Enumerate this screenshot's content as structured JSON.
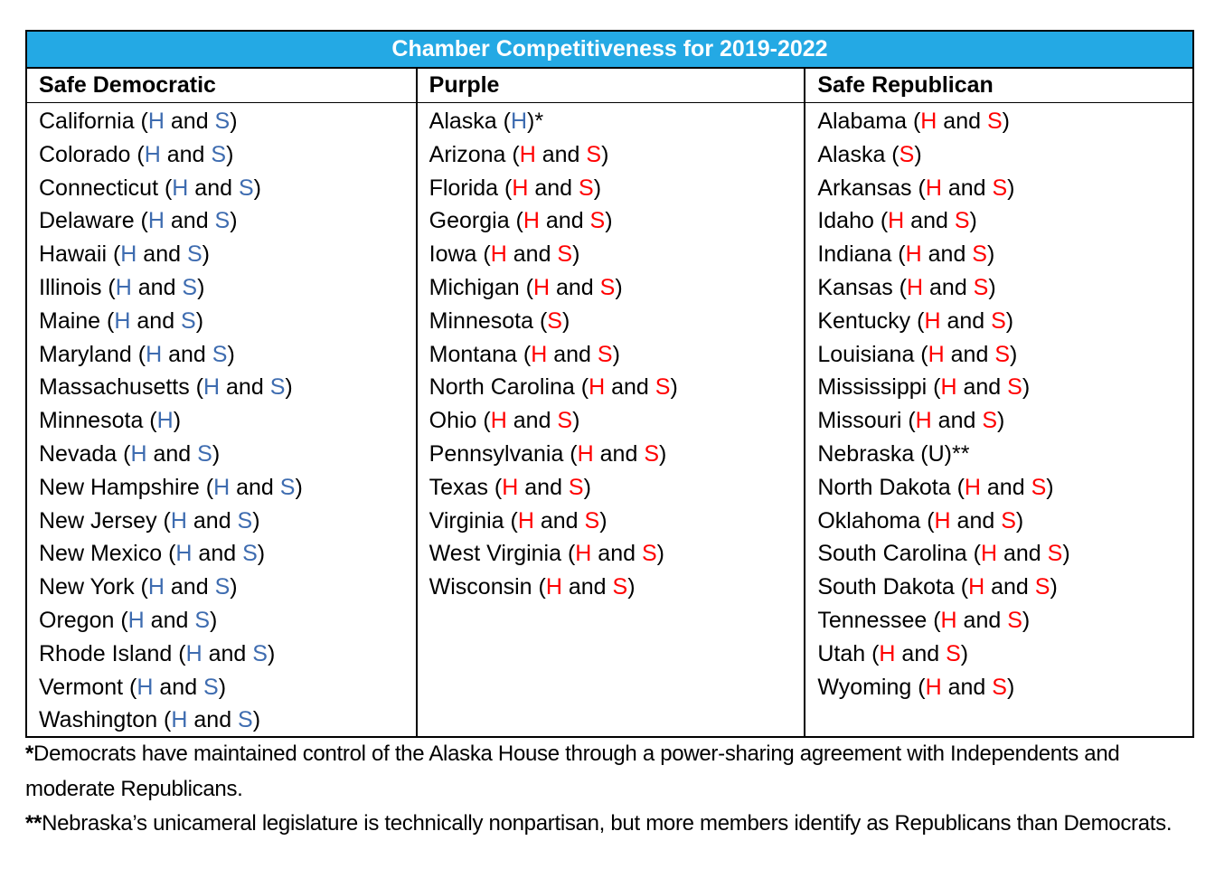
{
  "colors": {
    "header_bg": "#24A9E4",
    "header_text": "#FFFFFF",
    "dem": "#3E6CB0",
    "rep": "#FF0000",
    "plain": "#000000",
    "border": "#000000",
    "body_text": "#000000"
  },
  "table": {
    "title": "Chamber Competitiveness for 2019-2022",
    "joiner": "and",
    "columns": [
      {
        "header": "Safe Democratic",
        "entries": [
          {
            "state": "California",
            "chambers": [
              {
                "label": "H",
                "party": "dem"
              },
              {
                "label": "S",
                "party": "dem"
              }
            ],
            "suffix": ""
          },
          {
            "state": "Colorado",
            "chambers": [
              {
                "label": "H",
                "party": "dem"
              },
              {
                "label": "S",
                "party": "dem"
              }
            ],
            "suffix": ""
          },
          {
            "state": "Connecticut",
            "chambers": [
              {
                "label": "H",
                "party": "dem"
              },
              {
                "label": "S",
                "party": "dem"
              }
            ],
            "suffix": ""
          },
          {
            "state": "Delaware",
            "chambers": [
              {
                "label": "H",
                "party": "dem"
              },
              {
                "label": "S",
                "party": "dem"
              }
            ],
            "suffix": ""
          },
          {
            "state": "Hawaii",
            "chambers": [
              {
                "label": "H",
                "party": "dem"
              },
              {
                "label": "S",
                "party": "dem"
              }
            ],
            "suffix": ""
          },
          {
            "state": "Illinois",
            "chambers": [
              {
                "label": "H",
                "party": "dem"
              },
              {
                "label": "S",
                "party": "dem"
              }
            ],
            "suffix": ""
          },
          {
            "state": "Maine",
            "chambers": [
              {
                "label": "H",
                "party": "dem"
              },
              {
                "label": "S",
                "party": "dem"
              }
            ],
            "suffix": ""
          },
          {
            "state": "Maryland",
            "chambers": [
              {
                "label": "H",
                "party": "dem"
              },
              {
                "label": "S",
                "party": "dem"
              }
            ],
            "suffix": ""
          },
          {
            "state": "Massachusetts",
            "chambers": [
              {
                "label": "H",
                "party": "dem"
              },
              {
                "label": "S",
                "party": "dem"
              }
            ],
            "suffix": ""
          },
          {
            "state": "Minnesota",
            "chambers": [
              {
                "label": "H",
                "party": "dem"
              }
            ],
            "suffix": ""
          },
          {
            "state": "Nevada",
            "chambers": [
              {
                "label": "H",
                "party": "dem"
              },
              {
                "label": "S",
                "party": "dem"
              }
            ],
            "suffix": ""
          },
          {
            "state": "New Hampshire",
            "chambers": [
              {
                "label": "H",
                "party": "dem"
              },
              {
                "label": "S",
                "party": "dem"
              }
            ],
            "suffix": ""
          },
          {
            "state": "New Jersey",
            "chambers": [
              {
                "label": "H",
                "party": "dem"
              },
              {
                "label": "S",
                "party": "dem"
              }
            ],
            "suffix": ""
          },
          {
            "state": "New Mexico",
            "chambers": [
              {
                "label": "H",
                "party": "dem"
              },
              {
                "label": "S",
                "party": "dem"
              }
            ],
            "suffix": ""
          },
          {
            "state": "New York",
            "chambers": [
              {
                "label": "H",
                "party": "dem"
              },
              {
                "label": "S",
                "party": "dem"
              }
            ],
            "suffix": ""
          },
          {
            "state": "Oregon",
            "chambers": [
              {
                "label": "H",
                "party": "dem"
              },
              {
                "label": "S",
                "party": "dem"
              }
            ],
            "suffix": ""
          },
          {
            "state": "Rhode Island",
            "chambers": [
              {
                "label": "H",
                "party": "dem"
              },
              {
                "label": "S",
                "party": "dem"
              }
            ],
            "suffix": ""
          },
          {
            "state": "Vermont",
            "chambers": [
              {
                "label": "H",
                "party": "dem"
              },
              {
                "label": "S",
                "party": "dem"
              }
            ],
            "suffix": ""
          },
          {
            "state": "Washington",
            "chambers": [
              {
                "label": "H",
                "party": "dem"
              },
              {
                "label": "S",
                "party": "dem"
              }
            ],
            "suffix": ""
          }
        ]
      },
      {
        "header": "Purple",
        "entries": [
          {
            "state": "Alaska",
            "chambers": [
              {
                "label": "H",
                "party": "dem"
              }
            ],
            "suffix": "*"
          },
          {
            "state": "Arizona",
            "chambers": [
              {
                "label": "H",
                "party": "rep"
              },
              {
                "label": "S",
                "party": "rep"
              }
            ],
            "suffix": ""
          },
          {
            "state": "Florida",
            "chambers": [
              {
                "label": "H",
                "party": "rep"
              },
              {
                "label": "S",
                "party": "rep"
              }
            ],
            "suffix": ""
          },
          {
            "state": "Georgia",
            "chambers": [
              {
                "label": "H",
                "party": "rep"
              },
              {
                "label": "S",
                "party": "rep"
              }
            ],
            "suffix": ""
          },
          {
            "state": "Iowa",
            "chambers": [
              {
                "label": "H",
                "party": "rep"
              },
              {
                "label": "S",
                "party": "rep"
              }
            ],
            "suffix": ""
          },
          {
            "state": "Michigan",
            "chambers": [
              {
                "label": "H",
                "party": "rep"
              },
              {
                "label": "S",
                "party": "rep"
              }
            ],
            "suffix": ""
          },
          {
            "state": "Minnesota",
            "chambers": [
              {
                "label": "S",
                "party": "rep"
              }
            ],
            "suffix": ""
          },
          {
            "state": "Montana",
            "chambers": [
              {
                "label": "H",
                "party": "rep"
              },
              {
                "label": "S",
                "party": "rep"
              }
            ],
            "suffix": ""
          },
          {
            "state": "North Carolina",
            "chambers": [
              {
                "label": "H",
                "party": "rep"
              },
              {
                "label": "S",
                "party": "rep"
              }
            ],
            "suffix": ""
          },
          {
            "state": "Ohio",
            "chambers": [
              {
                "label": "H",
                "party": "rep"
              },
              {
                "label": "S",
                "party": "rep"
              }
            ],
            "suffix": ""
          },
          {
            "state": "Pennsylvania",
            "chambers": [
              {
                "label": "H",
                "party": "rep"
              },
              {
                "label": "S",
                "party": "rep"
              }
            ],
            "suffix": ""
          },
          {
            "state": "Texas",
            "chambers": [
              {
                "label": "H",
                "party": "rep"
              },
              {
                "label": "S",
                "party": "rep"
              }
            ],
            "suffix": ""
          },
          {
            "state": "Virginia",
            "chambers": [
              {
                "label": "H",
                "party": "rep"
              },
              {
                "label": "S",
                "party": "rep"
              }
            ],
            "suffix": ""
          },
          {
            "state": "West Virginia",
            "chambers": [
              {
                "label": "H",
                "party": "rep"
              },
              {
                "label": "S",
                "party": "rep"
              }
            ],
            "suffix": ""
          },
          {
            "state": "Wisconsin",
            "chambers": [
              {
                "label": "H",
                "party": "rep"
              },
              {
                "label": "S",
                "party": "rep"
              }
            ],
            "suffix": ""
          }
        ]
      },
      {
        "header": "Safe Republican",
        "entries": [
          {
            "state": "Alabama",
            "chambers": [
              {
                "label": "H",
                "party": "rep"
              },
              {
                "label": "S",
                "party": "rep"
              }
            ],
            "suffix": ""
          },
          {
            "state": "Alaska",
            "chambers": [
              {
                "label": "S",
                "party": "rep"
              }
            ],
            "suffix": ""
          },
          {
            "state": "Arkansas",
            "chambers": [
              {
                "label": "H",
                "party": "rep"
              },
              {
                "label": "S",
                "party": "rep"
              }
            ],
            "suffix": ""
          },
          {
            "state": "Idaho",
            "chambers": [
              {
                "label": "H",
                "party": "rep"
              },
              {
                "label": "S",
                "party": "rep"
              }
            ],
            "suffix": ""
          },
          {
            "state": "Indiana",
            "chambers": [
              {
                "label": "H",
                "party": "rep"
              },
              {
                "label": "S",
                "party": "rep"
              }
            ],
            "suffix": ""
          },
          {
            "state": "Kansas",
            "chambers": [
              {
                "label": "H",
                "party": "rep"
              },
              {
                "label": "S",
                "party": "rep"
              }
            ],
            "suffix": ""
          },
          {
            "state": "Kentucky",
            "chambers": [
              {
                "label": "H",
                "party": "rep"
              },
              {
                "label": "S",
                "party": "rep"
              }
            ],
            "suffix": ""
          },
          {
            "state": "Louisiana",
            "chambers": [
              {
                "label": "H",
                "party": "rep"
              },
              {
                "label": "S",
                "party": "rep"
              }
            ],
            "suffix": ""
          },
          {
            "state": "Mississippi",
            "chambers": [
              {
                "label": "H",
                "party": "rep"
              },
              {
                "label": "S",
                "party": "rep"
              }
            ],
            "suffix": ""
          },
          {
            "state": "Missouri",
            "chambers": [
              {
                "label": "H",
                "party": "rep"
              },
              {
                "label": "S",
                "party": "rep"
              }
            ],
            "suffix": ""
          },
          {
            "state": "Nebraska",
            "chambers": [
              {
                "label": "U",
                "party": "plain"
              }
            ],
            "suffix": "**"
          },
          {
            "state": "North Dakota",
            "chambers": [
              {
                "label": "H",
                "party": "rep"
              },
              {
                "label": "S",
                "party": "rep"
              }
            ],
            "suffix": ""
          },
          {
            "state": "Oklahoma",
            "chambers": [
              {
                "label": "H",
                "party": "rep"
              },
              {
                "label": "S",
                "party": "rep"
              }
            ],
            "suffix": ""
          },
          {
            "state": "South Carolina",
            "chambers": [
              {
                "label": "H",
                "party": "rep"
              },
              {
                "label": "S",
                "party": "rep"
              }
            ],
            "suffix": ""
          },
          {
            "state": "South Dakota",
            "chambers": [
              {
                "label": "H",
                "party": "rep"
              },
              {
                "label": "S",
                "party": "rep"
              }
            ],
            "suffix": ""
          },
          {
            "state": "Tennessee",
            "chambers": [
              {
                "label": "H",
                "party": "rep"
              },
              {
                "label": "S",
                "party": "rep"
              }
            ],
            "suffix": ""
          },
          {
            "state": "Utah",
            "chambers": [
              {
                "label": "H",
                "party": "rep"
              },
              {
                "label": "S",
                "party": "rep"
              }
            ],
            "suffix": ""
          },
          {
            "state": "Wyoming",
            "chambers": [
              {
                "label": "H",
                "party": "rep"
              },
              {
                "label": "S",
                "party": "rep"
              }
            ],
            "suffix": ""
          }
        ]
      }
    ]
  },
  "footnotes": [
    {
      "marker": "*",
      "text": "Democrats have maintained control of the Alaska House through a power-sharing agreement with Independents and moderate Republicans."
    },
    {
      "marker": "**",
      "text": "Nebraska’s unicameral legislature is technically nonpartisan, but more members identify as Republicans than Democrats."
    }
  ]
}
